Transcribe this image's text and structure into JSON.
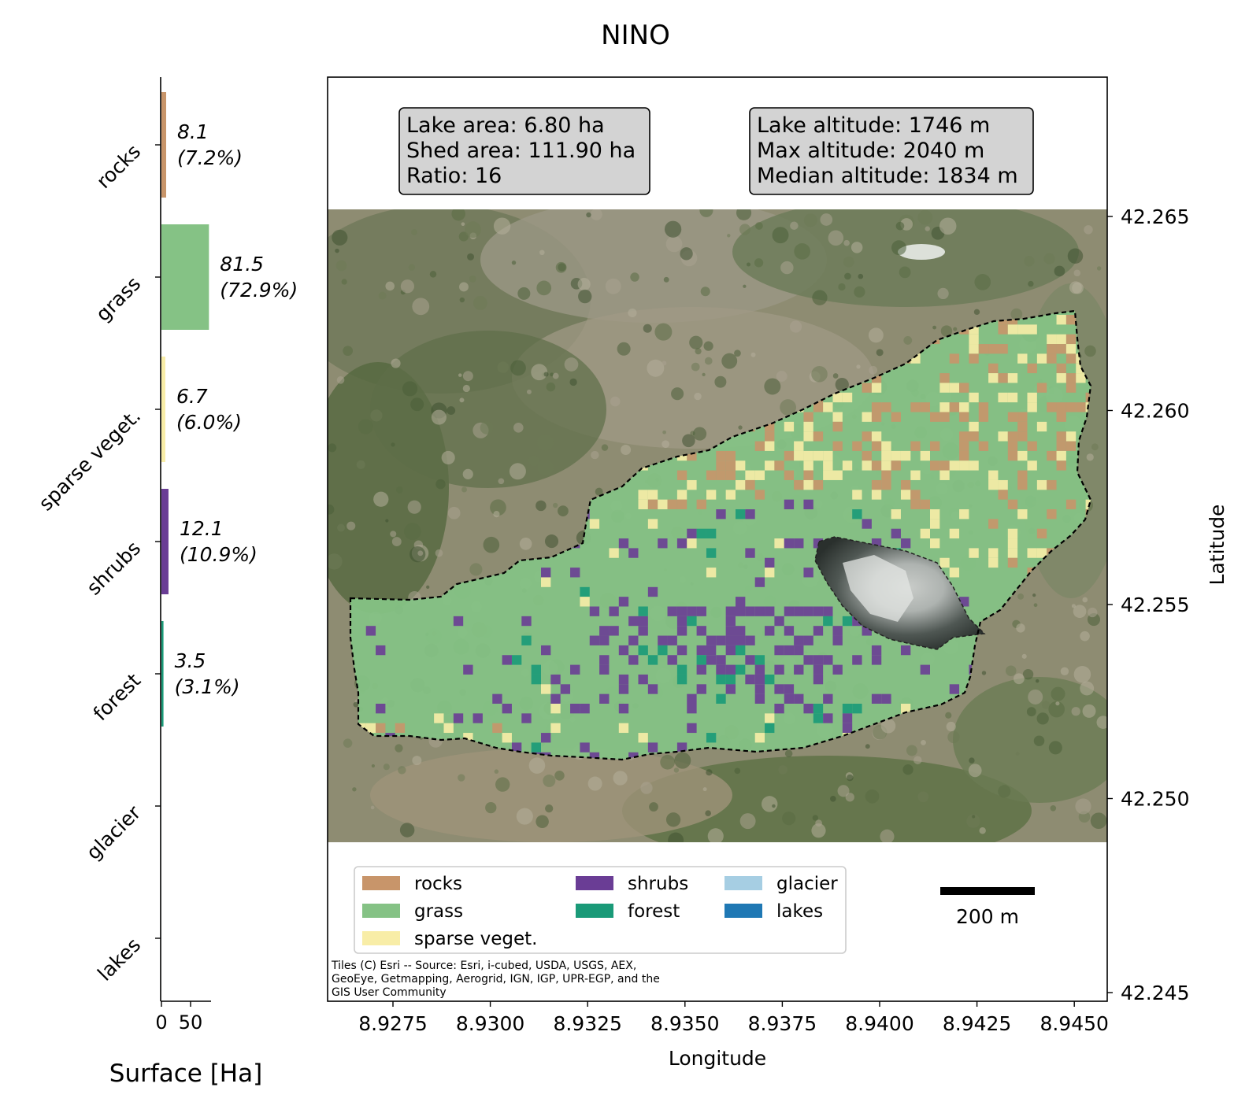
{
  "title": "NINO",
  "bar_chart": {
    "xlabel": "Surface [Ha]",
    "xticks": [
      "0",
      "50"
    ],
    "xmax": 85
  },
  "chart_data": {
    "type": "bar",
    "orientation": "horizontal",
    "categories": [
      "rocks",
      "grass",
      "sparse veget.",
      "shrubs",
      "forest",
      "glacier",
      "lakes"
    ],
    "values": [
      8.1,
      81.5,
      6.7,
      12.1,
      3.5,
      0,
      0
    ],
    "value_labels": [
      "8.1",
      "81.5",
      "6.7",
      "12.1",
      "3.5",
      "",
      ""
    ],
    "percent_labels": [
      "(7.2%)",
      "(72.9%)",
      "(6.0%)",
      "(10.9%)",
      "(3.1%)",
      "",
      ""
    ],
    "colors": [
      "#c8956a",
      "#85c285",
      "#f8eda7",
      "#6a3d95",
      "#1a9a78",
      "#a6cee3",
      "#1f78b4"
    ],
    "xlabel": "Surface [Ha]"
  },
  "info_boxes": {
    "left": [
      "Lake area: 6.80 ha",
      "Shed area: 111.90 ha",
      "Ratio: 16"
    ],
    "right": [
      "Lake altitude: 1746 m",
      "Max altitude: 2040 m",
      "Median altitude: 1834 m"
    ]
  },
  "map": {
    "xlabel": "Longitude",
    "ylabel": "Latitude",
    "xticks": [
      "8.9275",
      "8.9300",
      "8.9325",
      "8.9350",
      "8.9375",
      "8.9400",
      "8.9425",
      "8.9450"
    ],
    "yticks": [
      "42.265",
      "42.260",
      "42.255",
      "42.250",
      "42.245"
    ],
    "x_range": [
      8.926,
      8.9455
    ],
    "y_range": [
      42.2445,
      42.2665
    ],
    "scalebar_label": "200 m",
    "attribution": [
      "Tiles (C) Esri -- Source: Esri, i-cubed, USDA, USGS, AEX,",
      "GeoEye, Getmapping, Aerogrid, IGN, IGP, UPR-EGP, and the",
      "GIS User Community"
    ]
  },
  "legend": {
    "items": [
      {
        "label": "rocks",
        "color": "#c8956a"
      },
      {
        "label": "grass",
        "color": "#85c285"
      },
      {
        "label": "sparse veget.",
        "color": "#f8eda7"
      },
      {
        "label": "shrubs",
        "color": "#6a3d95"
      },
      {
        "label": "forest",
        "color": "#1a9a78"
      },
      {
        "label": "glacier",
        "color": "#a6cee3"
      },
      {
        "label": "lakes",
        "color": "#1f78b4"
      }
    ]
  }
}
